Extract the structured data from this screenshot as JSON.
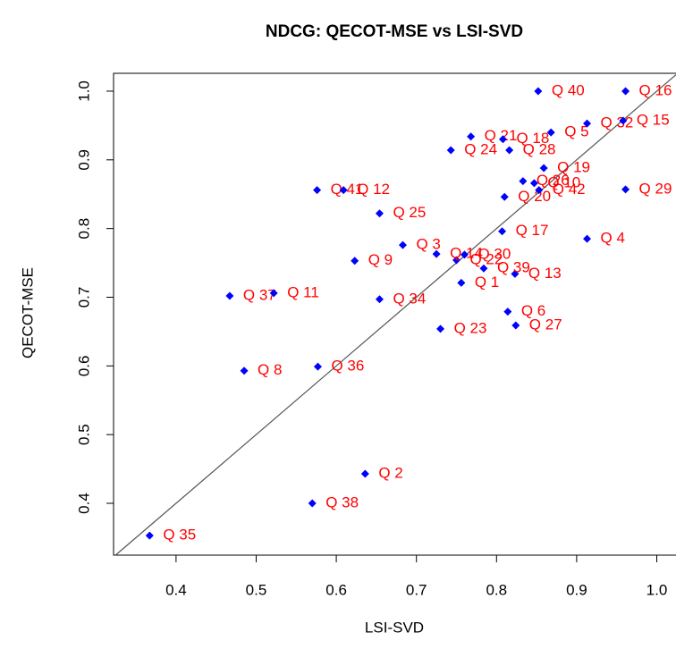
{
  "chart_data": {
    "type": "scatter",
    "title": "NDCG: QECOT-MSE vs LSI-SVD",
    "x_label": "LSI-SVD",
    "y_label": "QECOT-MSE",
    "xlim": [
      0.322,
      1.024
    ],
    "ylim": [
      0.3245,
      1.026
    ],
    "xticks": [
      0.4,
      0.5,
      0.6,
      0.7,
      0.8,
      0.9,
      {
        "value": 1,
        "label": "1.0"
      }
    ],
    "yticks": [
      0.4,
      0.5,
      0.6,
      0.7,
      0.8,
      0.9,
      {
        "value": 1,
        "label": "1.0"
      }
    ],
    "identity_line": true,
    "label_color": "#ff0000",
    "x": [
      0.367,
      0.57,
      0.636,
      0.485,
      0.577,
      0.467,
      0.522,
      0.654,
      0.73,
      0.824,
      0.814,
      0.756,
      0.823,
      0.784,
      0.75,
      0.623,
      0.683,
      0.725,
      0.76,
      0.807,
      0.913,
      0.654,
      0.576,
      0.609,
      0.81,
      0.961,
      0.853,
      0.847,
      0.833,
      0.859,
      0.743,
      0.816,
      0.768,
      0.808,
      0.868,
      0.913,
      0.958,
      0.852,
      0.961
    ],
    "point_labels": [
      "Q 35",
      "Q 38",
      "Q 2",
      "Q 8",
      "Q 36",
      "Q 37",
      "Q 11",
      "Q 34",
      "Q 23",
      "Q 27",
      "Q 6",
      "Q 1",
      "Q 13",
      "Q 39",
      "Q 22",
      "Q 9",
      "Q 3",
      "Q 14",
      "Q 30",
      "Q 17",
      "Q 4",
      "Q 25",
      "Q 41",
      "Q 12",
      "Q 20",
      "Q 29",
      "Q 42",
      "Q 10",
      "Q 26",
      "Q 19",
      "Q 24",
      "Q 28",
      "Q 21",
      "Q 18",
      "Q 5",
      "Q 32",
      "Q 15",
      "Q 40",
      "Q 16"
    ],
    "series": [
      {
        "color": "#0000ff",
        "values": [
          0.353,
          0.4,
          0.443,
          0.593,
          0.599,
          0.702,
          0.706,
          0.697,
          0.654,
          0.659,
          0.679,
          0.721,
          0.734,
          0.742,
          0.754,
          0.753,
          0.776,
          0.763,
          0.762,
          0.796,
          0.785,
          0.822,
          0.856,
          0.856,
          0.846,
          0.857,
          0.856,
          0.866,
          0.869,
          0.888,
          0.914,
          0.914,
          0.934,
          0.93,
          0.94,
          0.953,
          0.957,
          1.0,
          1.0
        ]
      }
    ]
  }
}
